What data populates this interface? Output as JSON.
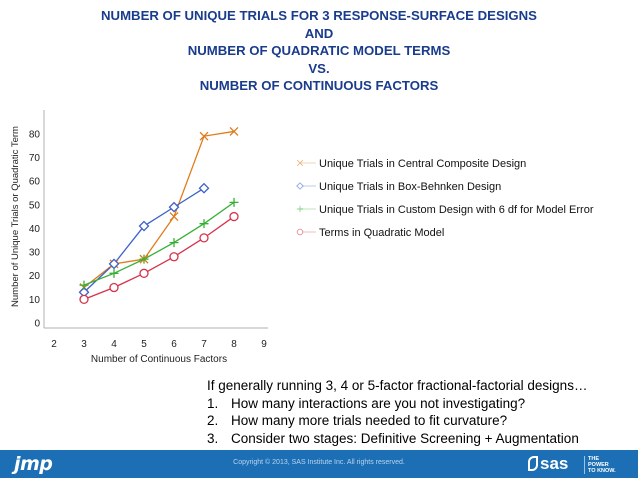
{
  "title_lines": [
    "NUMBER OF UNIQUE TRIALS FOR 3 RESPONSE-SURFACE DESIGNS",
    "AND",
    "NUMBER OF QUADRATIC MODEL TERMS",
    "VS.",
    "NUMBER OF CONTINUOUS FACTORS"
  ],
  "chart_data": {
    "type": "line",
    "xlabel": "Number of Continuous Factors",
    "ylabel": "Number of Unique Trials or Quadratic Term",
    "xlim": [
      2,
      9
    ],
    "ylim": [
      0,
      85
    ],
    "x_ticks": [
      2,
      3,
      4,
      5,
      6,
      7,
      8,
      9
    ],
    "y_ticks": [
      0,
      10,
      20,
      30,
      40,
      50,
      60,
      70,
      80
    ],
    "grid": false,
    "legend_position": "right",
    "series": [
      {
        "name": "Unique Trials in Central Composite Design",
        "color": "#e07b1a",
        "marker": "x",
        "x": [
          3,
          4,
          5,
          6,
          7,
          8
        ],
        "values": [
          15,
          25,
          27,
          45,
          79,
          81
        ]
      },
      {
        "name": "Unique Trials in Box-Behnken Design",
        "color": "#3d63c9",
        "marker": "diamond",
        "x": [
          3,
          4,
          5,
          6,
          7
        ],
        "values": [
          13,
          25,
          41,
          49,
          57
        ]
      },
      {
        "name": "Unique Trials in Custom Design with 6 df for Model Error",
        "color": "#35b035",
        "marker": "plus",
        "x": [
          3,
          4,
          5,
          6,
          7,
          8
        ],
        "values": [
          16,
          21,
          27,
          34,
          42,
          51
        ]
      },
      {
        "name": "Terms in Quadratic Model",
        "color": "#d6334a",
        "marker": "circle",
        "x": [
          3,
          4,
          5,
          6,
          7,
          8
        ],
        "values": [
          10,
          15,
          21,
          28,
          36,
          45
        ]
      }
    ]
  },
  "notes": {
    "intro": "If generally running 3, 4 or 5-factor fractional-factorial designs…",
    "items": [
      {
        "num": "1.",
        "text": "How many interactions are you not investigating?"
      },
      {
        "num": "2.",
        "text": "How many more trials needed to fit curvature?"
      },
      {
        "num": "3.",
        "text": "Consider two stages: Definitive Screening + Augmentation"
      }
    ]
  },
  "footer": {
    "left_logo": "jmp",
    "copyright": "Copyright © 2013, SAS Institute Inc. All rights reserved.",
    "right_logo": "sas",
    "tagline": [
      "THE",
      "POWER",
      "TO KNOW."
    ],
    "background": "#1d6fb5"
  }
}
